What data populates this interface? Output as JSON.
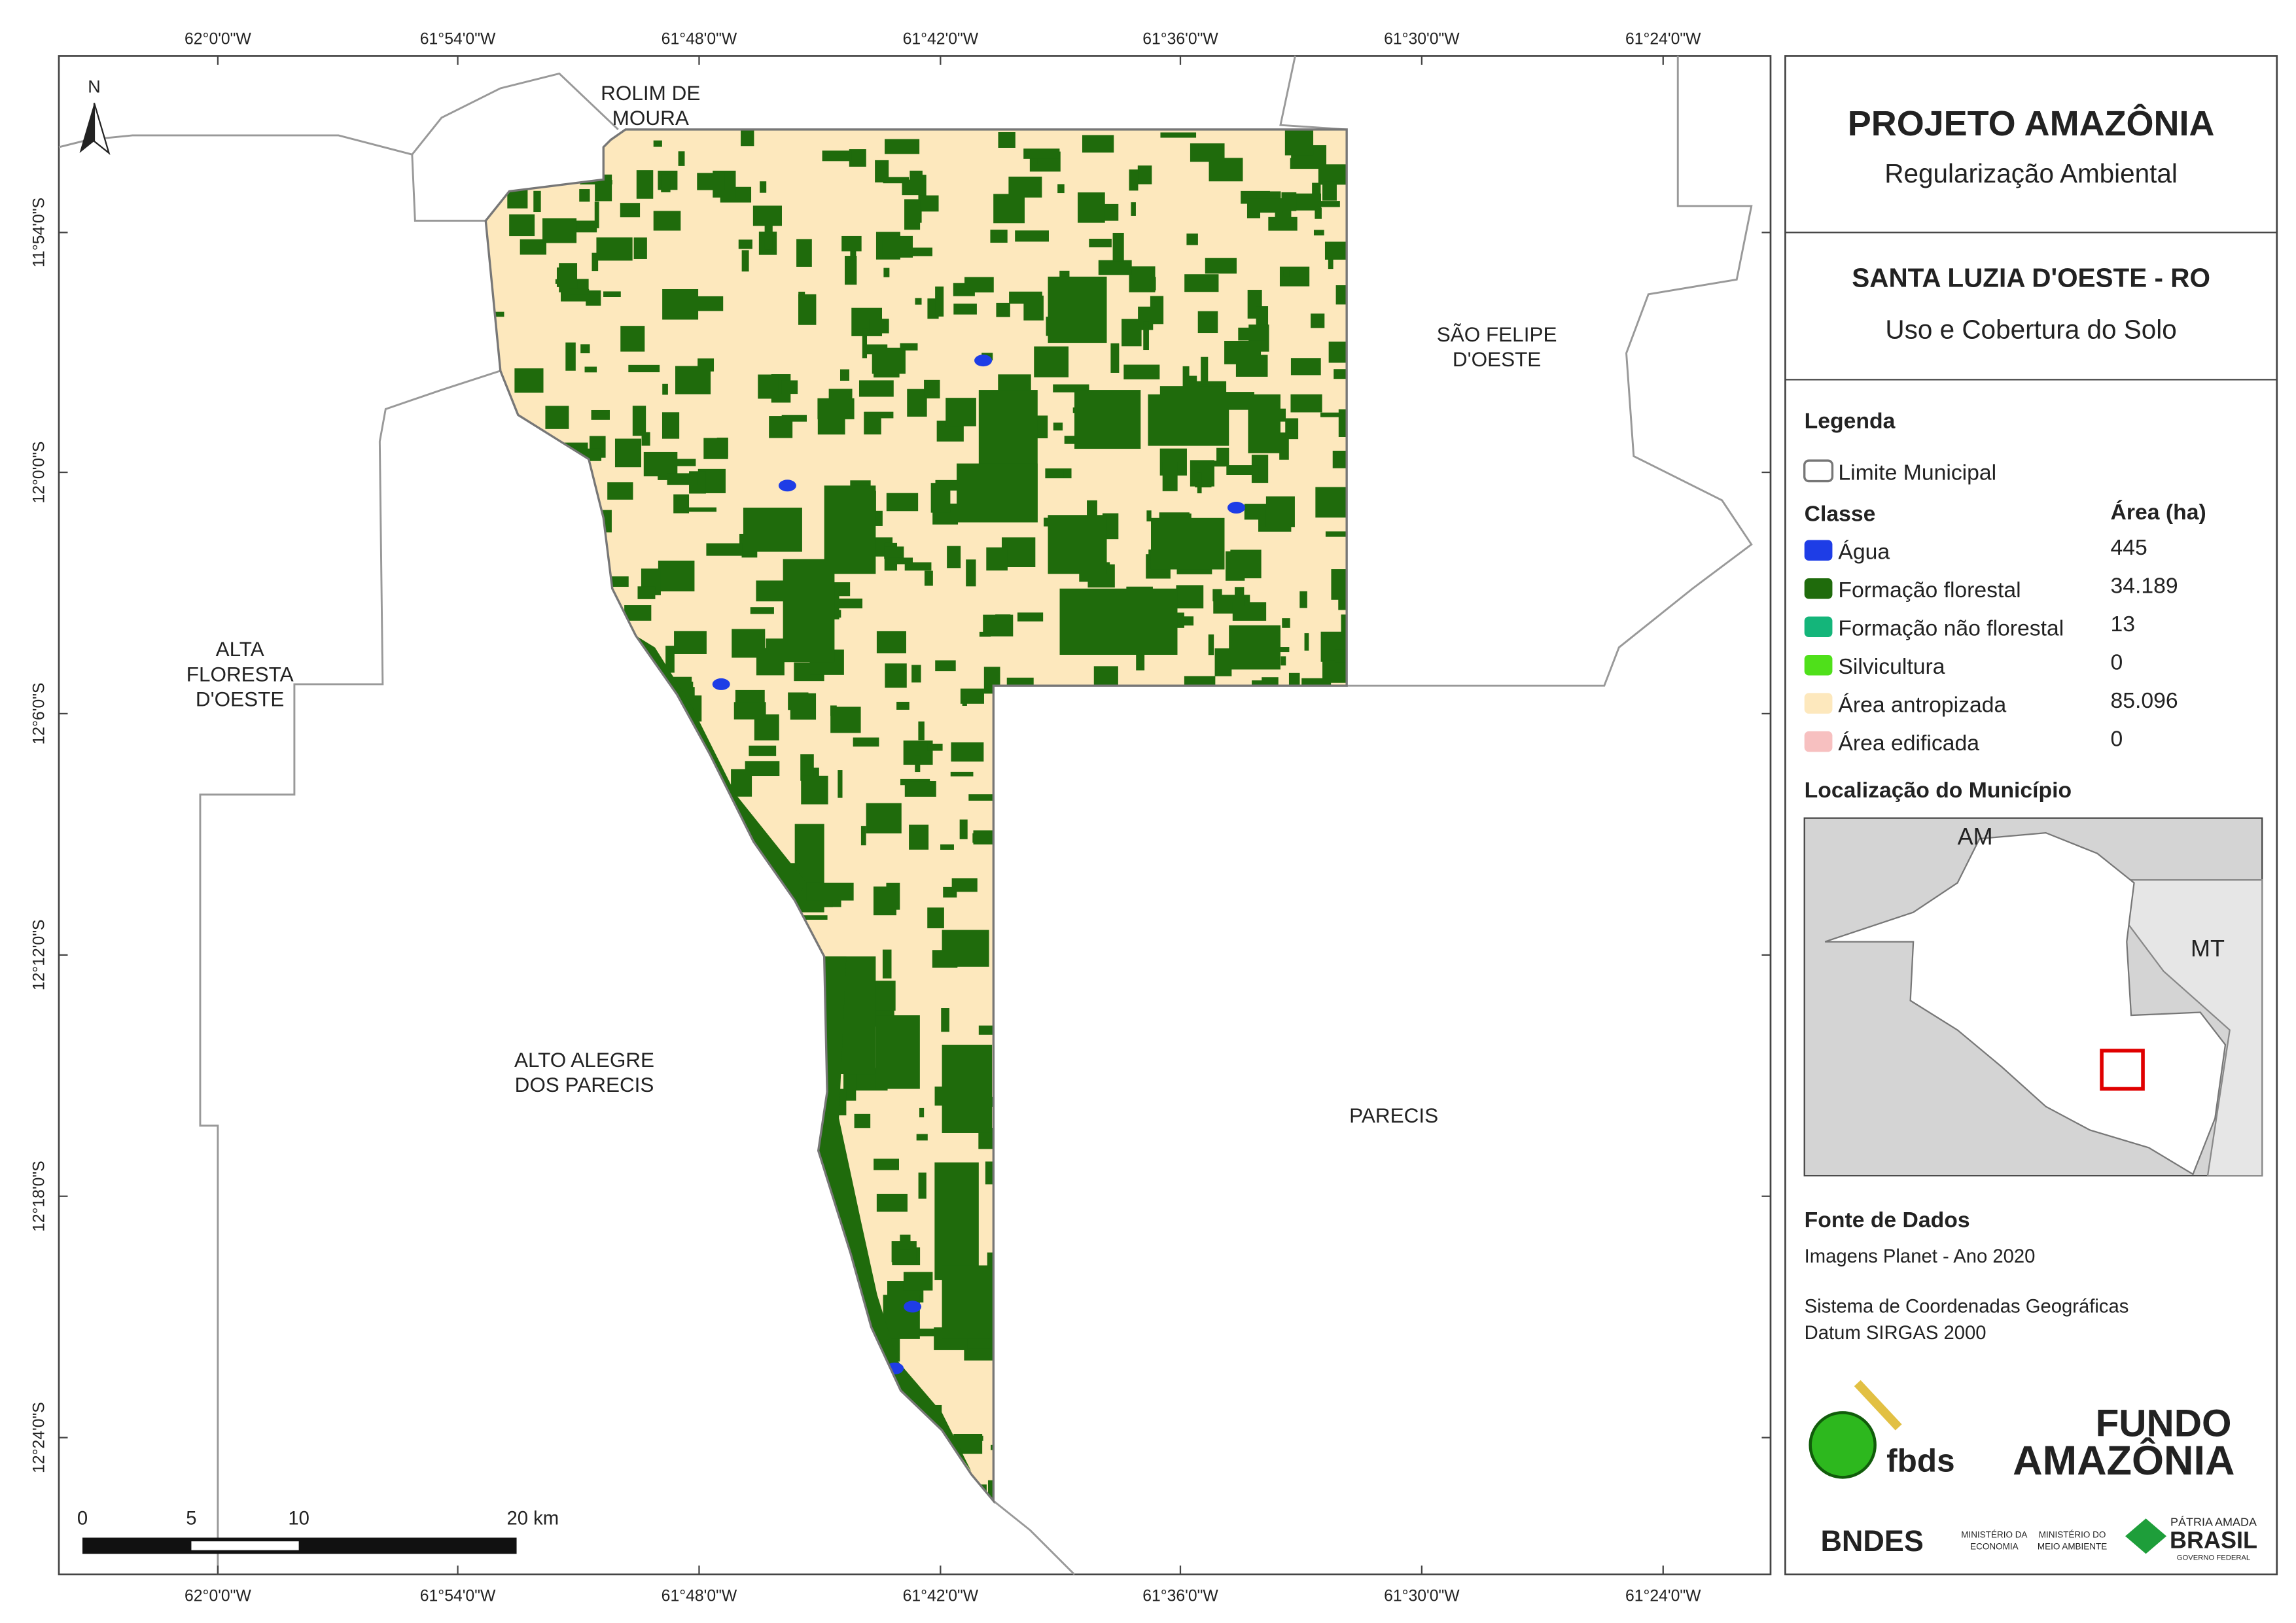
{
  "map": {
    "north_arrow": "N",
    "lon_labels": [
      "62°0'0\"W",
      "61°54'0\"W",
      "61°48'0\"W",
      "61°42'0\"W",
      "61°36'0\"W",
      "61°30'0\"W",
      "61°24'0\"W"
    ],
    "lat_labels": [
      "11°54'0\"S",
      "12°0'0\"S",
      "12°6'0\"S",
      "12°12'0\"S",
      "12°18'0\"S",
      "12°24'0\"S"
    ],
    "places": [
      [
        "ROLIM DE",
        "MOURA"
      ],
      [
        "SÃO FELIPE",
        "D'OESTE"
      ],
      [
        "ALTA",
        "FLORESTA",
        "D'OESTE"
      ],
      [
        "ALTO ALEGRE",
        "DOS PARECIS"
      ],
      [
        "PARECIS"
      ]
    ],
    "scale_labels": [
      "0",
      "5",
      "10",
      "20 km"
    ]
  },
  "panel": {
    "title": "PROJETO AMAZÔNIA",
    "subtitle": "Regularização Ambiental",
    "municipality": "SANTA LUZIA D'OESTE - RO",
    "theme": "Uso e Cobertura do Solo",
    "legend_title": "Legenda",
    "boundary": "Limite Municipal",
    "class_header": "Classe",
    "area_header": "Área (ha)",
    "classes": [
      {
        "name": "Água",
        "area": "445",
        "color": "#1e3de6"
      },
      {
        "name": "Formação florestal",
        "area": "34.189",
        "color": "#1f6b0c"
      },
      {
        "name": "Formação não florestal",
        "area": "13",
        "color": "#14b57a"
      },
      {
        "name": "Silvicultura",
        "area": "0",
        "color": "#4fe01a"
      },
      {
        "name": "Área antropizada",
        "area": "85.096",
        "color": "#fde8bd"
      },
      {
        "name": "Área edificada",
        "area": "0",
        "color": "#f7c0c0"
      }
    ],
    "location_title": "Localização do Município",
    "location_labels": [
      "AM",
      "MT"
    ],
    "source_title": "Fonte de Dados",
    "source_lines": [
      "Imagens Planet - Ano 2020",
      "Sistema de Coordenadas Geográficas",
      "Datum SIRGAS 2000"
    ],
    "logos": [
      "fbds",
      "FUNDO",
      "AMAZÔNIA",
      "BNDES",
      "MINISTÉRIO DA",
      "ECONOMIA",
      "MINISTÉRIO DO",
      "MEIO AMBIENTE",
      "PÁTRIA AMADA",
      "BRASIL",
      "GOVERNO FEDERAL"
    ]
  }
}
